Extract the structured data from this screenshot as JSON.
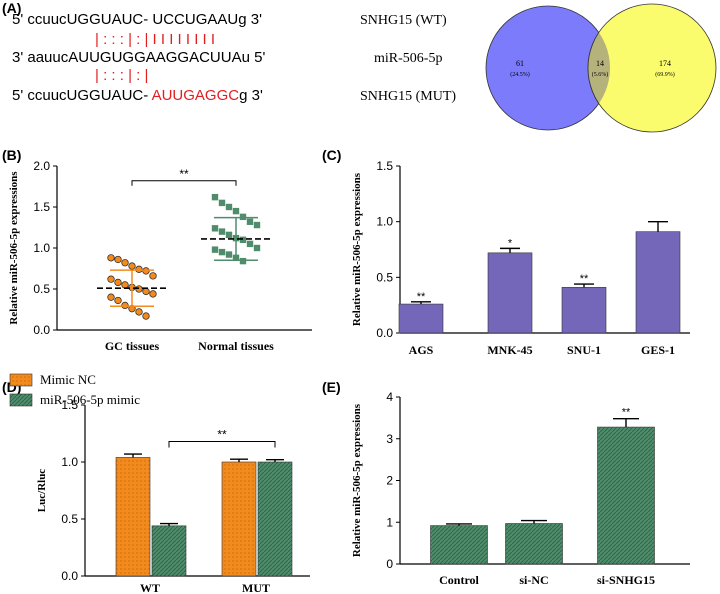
{
  "panel_labels": [
    "(A)",
    "(B)",
    "(C)",
    "(D)",
    "(E)"
  ],
  "sequences": {
    "wt": {
      "prefix": "5' ccuuc",
      "core": "UGGUAUC-  UCCUGAAU",
      "suffix": "g 3'",
      "label": "SNHG15 (WT)"
    },
    "pairs_top": "| : : : | : | I I I I I I I I",
    "mirna": {
      "text": "3' aauucAUUGUGGAAGGACUUAu 5'",
      "label": "miR-506-5p"
    },
    "pairs_bottom": "| : : : | : |",
    "mut": {
      "prefix": "5' ccuucUGGUAUC- ",
      "mut_core": "AUUGAGGC",
      "suffix": "g 3'",
      "label": "SNHG15 (MUT)"
    }
  },
  "venn": {
    "left": {
      "count": "61",
      "pct": "(24.5%)",
      "color": "#7b7bfb"
    },
    "overlap": {
      "count": "14",
      "pct": "(5.6%)",
      "color": "#b6b27c"
    },
    "right": {
      "count": "174",
      "pct": "(69.9%)",
      "color": "#fbfb6e"
    }
  },
  "chart_data": [
    {
      "id": "B",
      "type": "scatter",
      "ylabel": "Relative miR-506-5p expressions",
      "ylim": [
        0.0,
        2.0
      ],
      "yticks": [
        "0.0",
        "0.5",
        "1.0",
        "1.5",
        "2.0"
      ],
      "categories": [
        "GC tissues",
        "Normal tissues"
      ],
      "series": [
        {
          "name": "GC tissues",
          "color": "#f28a1e",
          "mean": 0.51,
          "sd": 0.22,
          "values": [
            0.88,
            0.86,
            0.82,
            0.78,
            0.74,
            0.72,
            0.66,
            0.62,
            0.58,
            0.55,
            0.52,
            0.5,
            0.47,
            0.44,
            0.4,
            0.36,
            0.3,
            0.26,
            0.22,
            0.17
          ]
        },
        {
          "name": "Normal tissues",
          "color": "#4e8c6b",
          "mean": 1.11,
          "sd": 0.26,
          "values": [
            1.62,
            1.55,
            1.5,
            1.45,
            1.38,
            1.32,
            1.28,
            1.24,
            1.2,
            1.16,
            1.12,
            1.1,
            1.05,
            1.0,
            0.98,
            0.95,
            0.92,
            0.88,
            0.84
          ]
        }
      ],
      "annotation": "**"
    },
    {
      "id": "C",
      "type": "bar",
      "ylabel": "Relative miR-506-5p expressions",
      "ylim": [
        0.0,
        1.5
      ],
      "yticks": [
        "0.0",
        "0.5",
        "1.0",
        "1.5"
      ],
      "categories": [
        "AGS",
        "MNK-45",
        "SNU-1",
        "GES-1"
      ],
      "values": [
        0.26,
        0.72,
        0.41,
        0.91
      ],
      "errors": [
        0.02,
        0.04,
        0.03,
        0.09
      ],
      "marks": [
        "**",
        "*",
        "**",
        ""
      ],
      "color": "#7466b8"
    },
    {
      "id": "D",
      "type": "bar",
      "ylabel": "Luc/Rluc",
      "ylim": [
        0.0,
        1.5
      ],
      "yticks": [
        "0.0",
        "0.5",
        "1.0",
        "1.5"
      ],
      "categories": [
        "WT",
        "MUT"
      ],
      "series": [
        {
          "name": "Mimic NC",
          "values": [
            1.04,
            1.0
          ],
          "errors": [
            0.03,
            0.025
          ],
          "color": "#f28a1e"
        },
        {
          "name": "miR-506-5p mimic",
          "values": [
            0.44,
            1.0
          ],
          "errors": [
            0.02,
            0.02
          ],
          "color": "#4e8c6b"
        }
      ],
      "annotation": "**"
    },
    {
      "id": "E",
      "type": "bar",
      "ylabel": "Relative miR-506-5p expressions",
      "ylim": [
        0,
        4
      ],
      "yticks": [
        "0",
        "1",
        "2",
        "3",
        "4"
      ],
      "categories": [
        "Control",
        "si-NC",
        "si-SNHG15"
      ],
      "values": [
        0.92,
        0.97,
        3.28
      ],
      "errors": [
        0.04,
        0.07,
        0.2
      ],
      "marks": [
        "",
        "",
        "**"
      ],
      "color": "#4e8c6b"
    }
  ]
}
